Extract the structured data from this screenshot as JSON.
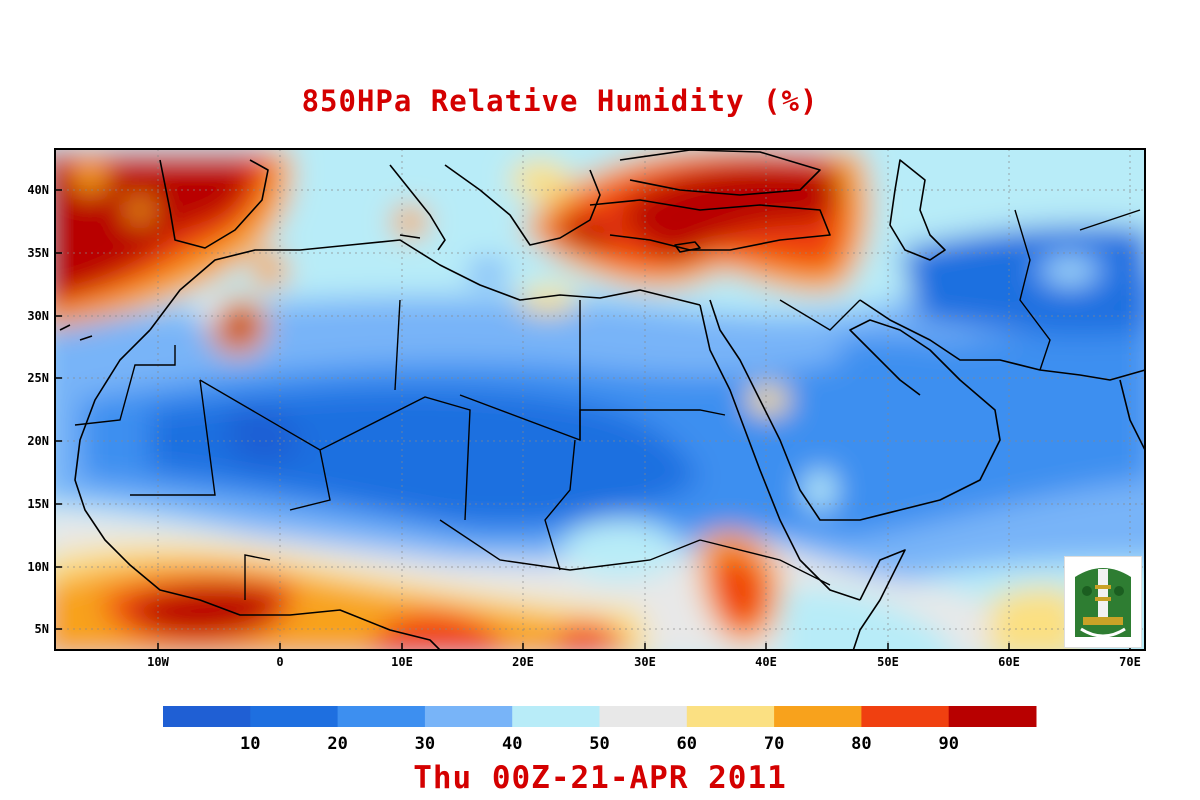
{
  "title": "850HPa Relative Humidity (%)",
  "date_label": "Thu 00Z-21-APR 2011",
  "map": {
    "lat_ticks": [
      "40N",
      "35N",
      "30N",
      "25N",
      "20N",
      "15N",
      "10N",
      "5N"
    ],
    "lon_ticks": [
      "10W",
      "0",
      "10E",
      "20E",
      "30E",
      "40E",
      "50E",
      "60E",
      "70E"
    ],
    "lon_range": [
      -18,
      71
    ],
    "lat_range": [
      3,
      43
    ]
  },
  "legend": {
    "labels": [
      "10",
      "20",
      "30",
      "40",
      "50",
      "60",
      "70",
      "80",
      "90"
    ],
    "colors": [
      "#1f5fd4",
      "#1e6fe0",
      "#3d8ff0",
      "#78b4f8",
      "#b8ecf8",
      "#e8e8e8",
      "#fbe082",
      "#f8a21c",
      "#f04010",
      "#b80000"
    ]
  },
  "logo": {
    "alt": "King Abdulaziz University logo"
  }
}
